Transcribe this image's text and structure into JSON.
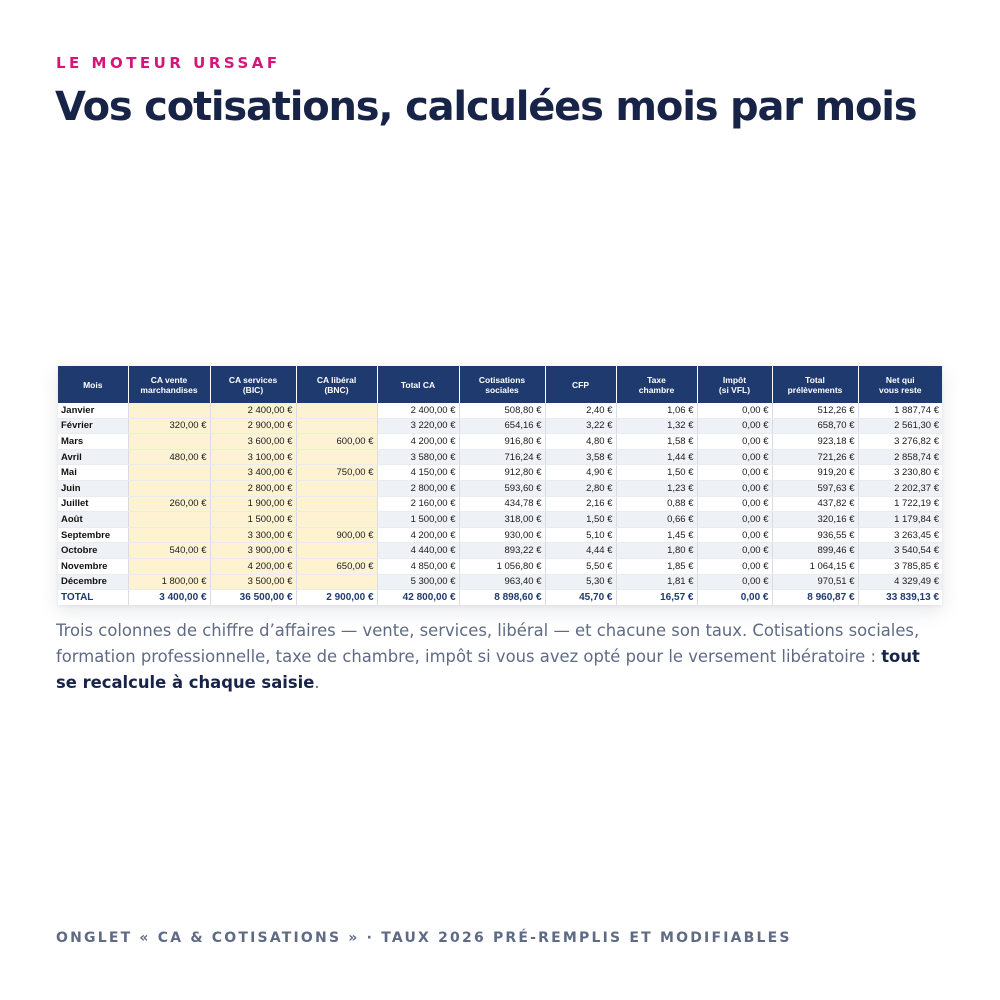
{
  "eyebrow": "LE MOTEUR URSSAF",
  "title": "Vos cotisations, calculées mois par mois",
  "table": {
    "headers": [
      [
        "Mois"
      ],
      [
        "CA vente",
        "marchandises"
      ],
      [
        "CA services",
        "(BIC)"
      ],
      [
        "CA libéral",
        "(BNC)"
      ],
      [
        "Total CA"
      ],
      [
        "Cotisations",
        "sociales"
      ],
      [
        "CFP"
      ],
      [
        "Taxe",
        "chambre"
      ],
      [
        "Impôt",
        "(si VFL)"
      ],
      [
        "Total",
        "prélèvements"
      ],
      [
        "Net qui",
        "vous reste"
      ]
    ],
    "rows": [
      [
        "Janvier",
        "",
        "2 400,00 €",
        "",
        "2 400,00 €",
        "508,80 €",
        "2,40 €",
        "1,06 €",
        "0,00 €",
        "512,26 €",
        "1 887,74 €"
      ],
      [
        "Février",
        "320,00 €",
        "2 900,00 €",
        "",
        "3 220,00 €",
        "654,16 €",
        "3,22 €",
        "1,32 €",
        "0,00 €",
        "658,70 €",
        "2 561,30 €"
      ],
      [
        "Mars",
        "",
        "3 600,00 €",
        "600,00 €",
        "4 200,00 €",
        "916,80 €",
        "4,80 €",
        "1,58 €",
        "0,00 €",
        "923,18 €",
        "3 276,82 €"
      ],
      [
        "Avril",
        "480,00 €",
        "3 100,00 €",
        "",
        "3 580,00 €",
        "716,24 €",
        "3,58 €",
        "1,44 €",
        "0,00 €",
        "721,26 €",
        "2 858,74 €"
      ],
      [
        "Mai",
        "",
        "3 400,00 €",
        "750,00 €",
        "4 150,00 €",
        "912,80 €",
        "4,90 €",
        "1,50 €",
        "0,00 €",
        "919,20 €",
        "3 230,80 €"
      ],
      [
        "Juin",
        "",
        "2 800,00 €",
        "",
        "2 800,00 €",
        "593,60 €",
        "2,80 €",
        "1,23 €",
        "0,00 €",
        "597,63 €",
        "2 202,37 €"
      ],
      [
        "Juillet",
        "260,00 €",
        "1 900,00 €",
        "",
        "2 160,00 €",
        "434,78 €",
        "2,16 €",
        "0,88 €",
        "0,00 €",
        "437,82 €",
        "1 722,19 €"
      ],
      [
        "Août",
        "",
        "1 500,00 €",
        "",
        "1 500,00 €",
        "318,00 €",
        "1,50 €",
        "0,66 €",
        "0,00 €",
        "320,16 €",
        "1 179,84 €"
      ],
      [
        "Septembre",
        "",
        "3 300,00 €",
        "900,00 €",
        "4 200,00 €",
        "930,00 €",
        "5,10 €",
        "1,45 €",
        "0,00 €",
        "936,55 €",
        "3 263,45 €"
      ],
      [
        "Octobre",
        "540,00 €",
        "3 900,00 €",
        "",
        "4 440,00 €",
        "893,22 €",
        "4,44 €",
        "1,80 €",
        "0,00 €",
        "899,46 €",
        "3 540,54 €"
      ],
      [
        "Novembre",
        "",
        "4 200,00 €",
        "650,00 €",
        "4 850,00 €",
        "1 056,80 €",
        "5,50 €",
        "1,85 €",
        "0,00 €",
        "1 064,15 €",
        "3 785,85 €"
      ],
      [
        "Décembre",
        "1 800,00 €",
        "3 500,00 €",
        "",
        "5 300,00 €",
        "963,40 €",
        "5,30 €",
        "1,81 €",
        "0,00 €",
        "970,51 €",
        "4 329,49 €"
      ]
    ],
    "total": [
      "TOTAL",
      "3 400,00 €",
      "36 500,00 €",
      "2 900,00 €",
      "42 800,00 €",
      "8 898,60 €",
      "45,70 €",
      "16,57 €",
      "0,00 €",
      "8 960,87 €",
      "33 839,13 €"
    ]
  },
  "description": {
    "text": "Trois colonnes de chiffre d’affaires — vente, services, libéral — et chacune son taux. Cotisations sociales, formation professionnelle, taxe de chambre, impôt si vous avez opté pour le versement libératoire : ",
    "emphasis": "tout se recalcule à chaque saisie",
    "end": "."
  },
  "footer": "ONGLET « CA & COTISATIONS » · TAUX 2026 PRÉ-REMPLIS ET MODIFIABLES",
  "colors": {
    "accent": "#d6157a",
    "navy": "#1f3a6f",
    "input_cell": "#fdf3d3",
    "text_muted": "#5f6b85"
  }
}
